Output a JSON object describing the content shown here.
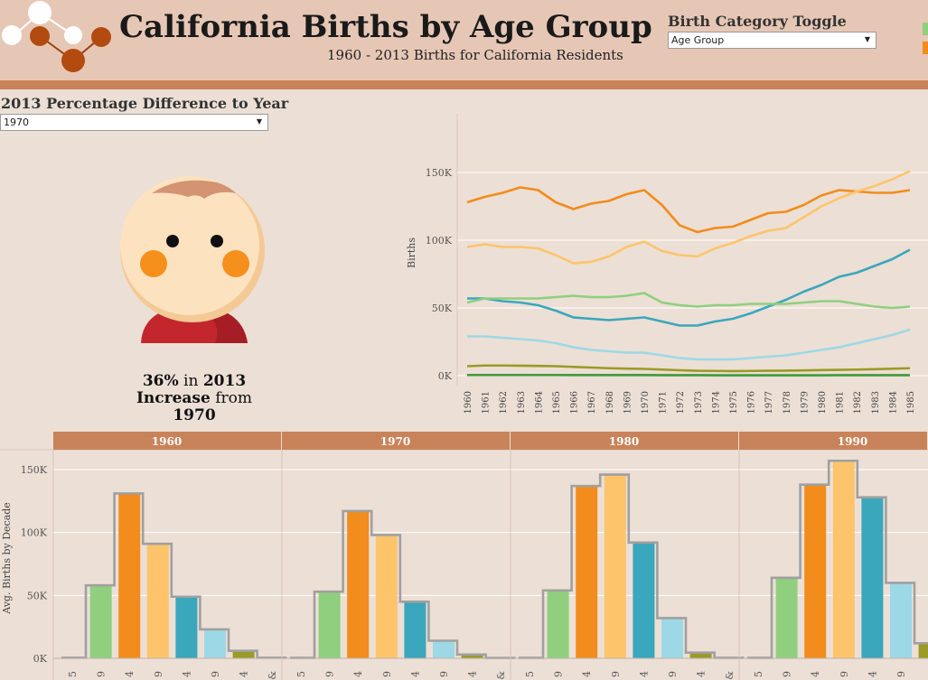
{
  "header": {
    "title": "California Births by Age Group",
    "subtitle": "1960 - 2013 Births for California Residents"
  },
  "toggle": {
    "label": "Birth Category Toggle",
    "selected": "Age Group",
    "legend_colors": [
      "#8fcf7e",
      "#f28c1c"
    ]
  },
  "difference": {
    "label": "2013 Percentage Difference to Year",
    "selected_year": "1970",
    "percent": "36%",
    "word_in": "in",
    "year_2013": "2013",
    "direction": "Increase",
    "word_from": "from",
    "from_year": "1970"
  },
  "colors": {
    "orange": "#f28c1c",
    "light_orange": "#fdc46b",
    "teal": "#3aa7bd",
    "green": "#8fcf7e",
    "light_blue": "#9dd8e6",
    "olive": "#9b9a26",
    "dark_green": "#3f9a3a",
    "grey_step": "#a0a0a0",
    "panel_header": "#c9835a"
  },
  "chart_data": [
    {
      "type": "line",
      "ylabel": "Births",
      "ylim": [
        0,
        160000
      ],
      "yticks": [
        0,
        50000,
        100000,
        150000
      ],
      "ytick_labels": [
        "0K",
        "50K",
        "100K",
        "150K"
      ],
      "x": [
        "1960",
        "1961",
        "1962",
        "1963",
        "1964",
        "1965",
        "1966",
        "1967",
        "1968",
        "1969",
        "1970",
        "1971",
        "1972",
        "1973",
        "1974",
        "1975",
        "1976",
        "1977",
        "1978",
        "1979",
        "1980",
        "1981",
        "1982",
        "1983",
        "1984",
        "1985"
      ],
      "grid": true,
      "series": [
        {
          "color": "#f28c1c",
          "values": [
            128000,
            132000,
            135000,
            139000,
            137000,
            128000,
            123000,
            127000,
            129000,
            134000,
            137000,
            126000,
            111000,
            106000,
            109000,
            110000,
            115000,
            120000,
            121000,
            126000,
            133000,
            137000,
            136000,
            135000,
            135000,
            137000
          ]
        },
        {
          "color": "#fdc46b",
          "values": [
            95000,
            97000,
            95000,
            95000,
            94000,
            89000,
            83000,
            84000,
            88000,
            95000,
            99000,
            92000,
            89000,
            88000,
            94000,
            98000,
            103000,
            107000,
            109000,
            117000,
            125000,
            131000,
            136000,
            140000,
            145000,
            151000
          ]
        },
        {
          "color": "#3aa7bd",
          "values": [
            57000,
            57000,
            55000,
            54000,
            52000,
            48000,
            43000,
            42000,
            41000,
            42000,
            43000,
            40000,
            37000,
            37000,
            40000,
            42000,
            46000,
            51000,
            56000,
            62000,
            67000,
            73000,
            76000,
            81000,
            86000,
            93000
          ]
        },
        {
          "color": "#8fcf7e",
          "values": [
            54000,
            57000,
            57000,
            57000,
            57000,
            58000,
            59000,
            58000,
            58000,
            59000,
            61000,
            54000,
            52000,
            51000,
            52000,
            52000,
            53000,
            53000,
            53000,
            54000,
            55000,
            55000,
            53000,
            51000,
            50000,
            51000
          ]
        },
        {
          "color": "#9dd8e6",
          "values": [
            29000,
            29000,
            28000,
            27000,
            26000,
            24000,
            21000,
            19000,
            18000,
            17000,
            17000,
            15000,
            13000,
            12000,
            12000,
            12000,
            13000,
            14000,
            15000,
            17000,
            19000,
            21000,
            24000,
            27000,
            30000,
            34000
          ]
        },
        {
          "color": "#9b9a26",
          "values": [
            7000,
            7500,
            7500,
            7400,
            7200,
            7000,
            6500,
            6000,
            5500,
            5200,
            5000,
            4500,
            4000,
            3600,
            3500,
            3400,
            3500,
            3600,
            3700,
            3900,
            4100,
            4300,
            4500,
            4800,
            5100,
            5500
          ]
        },
        {
          "color": "#3f9a3a",
          "values": [
            500,
            500,
            500,
            500,
            500,
            500,
            450,
            450,
            450,
            450,
            450,
            400,
            350,
            350,
            300,
            300,
            300,
            300,
            300,
            300,
            300,
            350,
            350,
            350,
            350,
            400
          ]
        }
      ]
    },
    {
      "type": "bar",
      "ylabel": "Avg. Births by Decade",
      "ylim": [
        0,
        160000
      ],
      "yticks": [
        0,
        50000,
        100000,
        150000
      ],
      "ytick_labels": [
        "0K",
        "50K",
        "100K",
        "150K"
      ],
      "series_colors": [
        "#3f9a3a",
        "#8fcf7e",
        "#f28c1c",
        "#fdc46b",
        "#3aa7bd",
        "#9dd8e6",
        "#9b9a26",
        "#c8c2a0"
      ],
      "panels": [
        {
          "decade": "1960",
          "values": [
            500,
            58000,
            131000,
            91000,
            49000,
            23000,
            6000,
            500
          ]
        },
        {
          "decade": "1970",
          "values": [
            400,
            53000,
            117000,
            98000,
            45000,
            14000,
            3000,
            300
          ]
        },
        {
          "decade": "1980",
          "values": [
            400,
            54000,
            137000,
            146000,
            92000,
            32000,
            4500,
            400
          ]
        },
        {
          "decade": "1990",
          "values": [
            400,
            64000,
            138000,
            157000,
            128000,
            60000,
            12000,
            800
          ]
        }
      ],
      "tick_labels_partial": [
        "5",
        "9",
        "4",
        "9",
        "4",
        "9",
        "4",
        "&"
      ]
    }
  ]
}
